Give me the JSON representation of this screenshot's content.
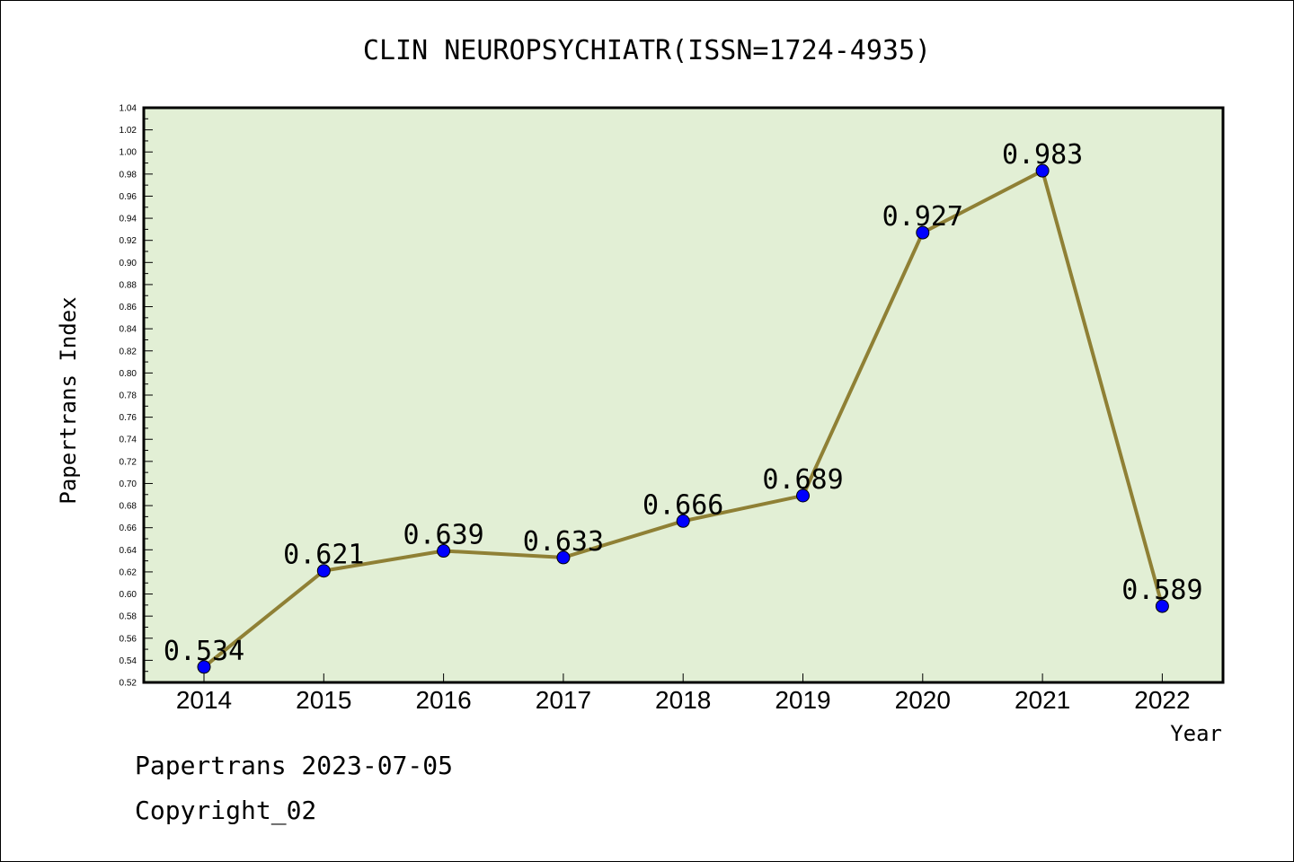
{
  "chart_data": {
    "type": "line",
    "title": "CLIN NEUROPSYCHIATR(ISSN=1724-4935)",
    "xlabel": "Year",
    "ylabel": "Papertrans Index",
    "categories": [
      "2014",
      "2015",
      "2016",
      "2017",
      "2018",
      "2019",
      "2020",
      "2021",
      "2022"
    ],
    "values": [
      0.534,
      0.621,
      0.639,
      0.633,
      0.666,
      0.689,
      0.927,
      0.983,
      0.589
    ],
    "data_labels": [
      "0.534",
      "0.621",
      "0.639",
      "0.633",
      "0.666",
      "0.689",
      "0.927",
      "0.983",
      "0.589"
    ],
    "ylim": [
      0.52,
      1.04
    ],
    "yticks": [
      "0.52",
      "0.54",
      "0.56",
      "0.58",
      "0.60",
      "0.62",
      "0.64",
      "0.66",
      "0.68",
      "0.70",
      "0.72",
      "0.74",
      "0.76",
      "0.78",
      "0.80",
      "0.82",
      "0.84",
      "0.86",
      "0.88",
      "0.90",
      "0.92",
      "0.94",
      "0.96",
      "0.98",
      "1.00",
      "1.02",
      "1.04"
    ],
    "grid": false,
    "colors": {
      "plot_background": "#e2efd5",
      "line": "#8f8035",
      "marker": "#0000ff"
    }
  },
  "footer": {
    "line1": "Papertrans 2023-07-05",
    "line2": "Copyright_02"
  }
}
